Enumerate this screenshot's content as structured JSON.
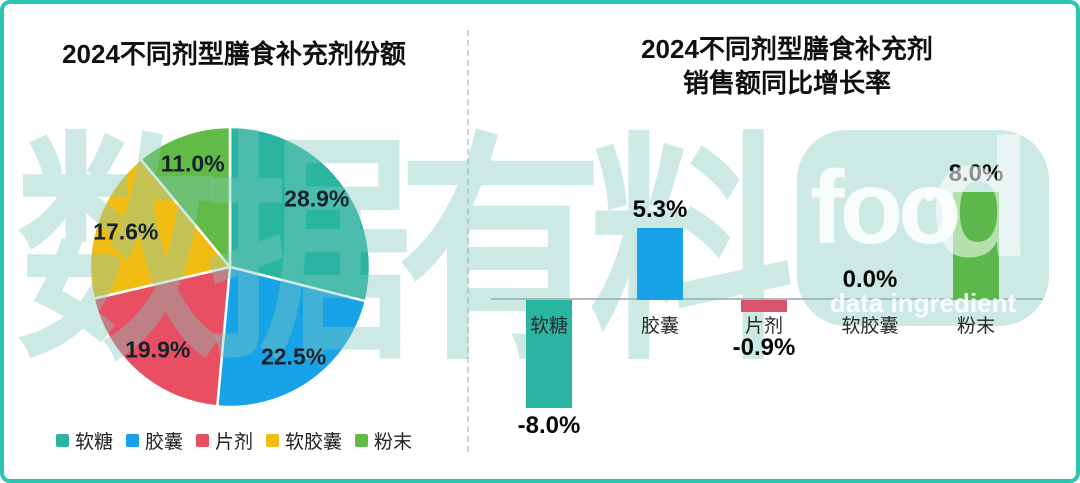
{
  "page": {
    "background": "#ffffff",
    "border_color": "#2cc5b2",
    "divider_color": "#ccd2d6",
    "axis_color": "#b3babf"
  },
  "watermark": {
    "text": "数据有料",
    "logo_text": "food",
    "logo_sub": "data ingredient",
    "color": "#7fc9b9"
  },
  "chart_data": [
    {
      "type": "pie",
      "title": "2024不同剂型膳食补充剂份额",
      "labels": [
        "软糖",
        "胶囊",
        "片剂",
        "软胶囊",
        "粉末"
      ],
      "values": [
        28.9,
        22.5,
        19.9,
        17.6,
        11.0
      ],
      "value_labels": [
        "28.9%",
        "22.5%",
        "19.9%",
        "17.6%",
        "11.0%"
      ],
      "colors": [
        "#2ab5a3",
        "#18a3e8",
        "#e84f63",
        "#f2bd13",
        "#62bb46"
      ],
      "start_angle_deg": 0,
      "direction": "clockwise",
      "legend_position": "bottom"
    },
    {
      "type": "bar",
      "title": "2024不同剂型膳食补充剂 销售额同比增长率",
      "title_lines": [
        "2024不同剂型膳食补充剂",
        "销售额同比增长率"
      ],
      "categories": [
        "软糖",
        "胶囊",
        "片剂",
        "软胶囊",
        "粉末"
      ],
      "values": [
        -8.0,
        5.3,
        -0.9,
        0.0,
        8.0
      ],
      "value_labels": [
        "-8.0%",
        "5.3%",
        "-0.9%",
        "0.0%",
        "8.0%"
      ],
      "bar_colors": [
        "#2ab5a3",
        "#18a3e8",
        "#d9556b",
        "#2ab5a3",
        "#5cb84a"
      ],
      "unit": "%",
      "ylim": [
        -9,
        9
      ],
      "baseline": 0,
      "grid": false
    }
  ]
}
